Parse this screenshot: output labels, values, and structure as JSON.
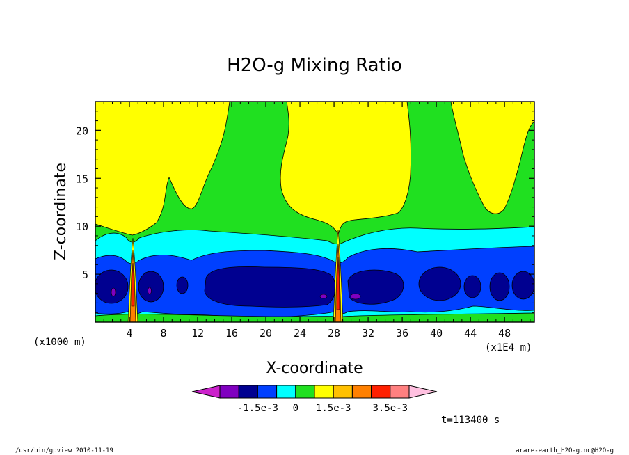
{
  "chart_data": {
    "type": "contour",
    "title": "H2O-g Mixing Ratio",
    "xlabel": "X-coordinate",
    "ylabel": "Z-coordinate",
    "x_unit": "(x1E4 m)",
    "y_unit": "(x1000 m)",
    "xlim": [
      0,
      51.5
    ],
    "ylim": [
      0,
      23
    ],
    "x_ticks": [
      "4",
      "8",
      "12",
      "16",
      "20",
      "24",
      "28",
      "32",
      "36",
      "40",
      "44",
      "48"
    ],
    "y_ticks": [
      "5",
      "10",
      "15",
      "20"
    ],
    "colorbar": {
      "labels": [
        "-1.5e-3",
        "0",
        "1.5e-3",
        "3.5e-3"
      ],
      "colors": [
        "#cc22cc",
        "#8000c0",
        "#000090",
        "#0040ff",
        "#00ffff",
        "#20e020",
        "#ffff00",
        "#ffc000",
        "#ff8000",
        "#ff2000",
        "#ff8080",
        "#ffc0e0"
      ]
    },
    "fill_colors": {
      "low_near_surface_ring": "#20e020",
      "mid_layer": "#00ffff",
      "lower_layer": "#0040ff",
      "core_layer": "#000090",
      "minimum_spots": "#8000c0",
      "upper_background": "#20e020",
      "upper_plumes": "#ffff00",
      "jet_core": "#ff2000",
      "jet_outer": "#ff8000"
    },
    "plume_columns_x": [
      4.5,
      28.3
    ],
    "upper_plume_regions_x": [
      [
        0.5,
        16
      ],
      [
        21.5,
        36.5
      ],
      [
        41.5,
        51.5
      ]
    ]
  },
  "footer": {
    "time": "t=113400 s",
    "left": "/usr/bin/gpview  2010-11-19",
    "right": "arare-earth_H2O-g.nc@H2O-g"
  }
}
